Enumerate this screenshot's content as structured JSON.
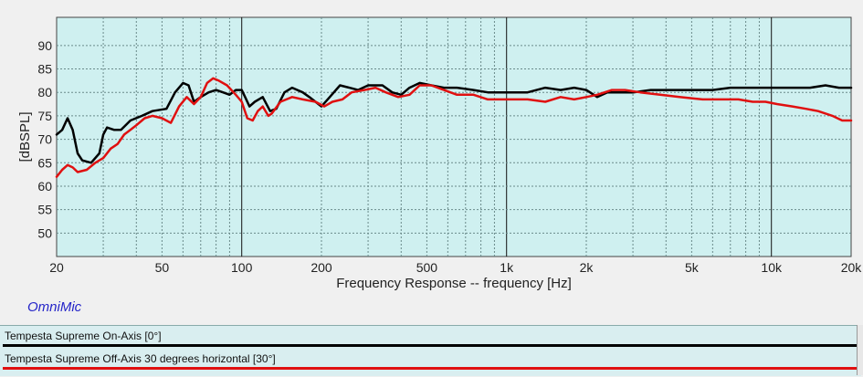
{
  "chart_data": {
    "type": "line",
    "xlabel": "Frequency Response -- frequency [Hz]",
    "ylabel": "[dBSPL]",
    "xscale": "log",
    "xlim": [
      20,
      20000
    ],
    "ylim": [
      45,
      96
    ],
    "grid": true,
    "background": "#cff0f0",
    "x_ticks": [
      20,
      50,
      100,
      200,
      500,
      1000,
      2000,
      5000,
      10000,
      20000
    ],
    "x_tick_labels": [
      "20",
      "50",
      "100",
      "200",
      "500",
      "1k",
      "2k",
      "5k",
      "10k",
      "20k"
    ],
    "y_ticks": [
      50,
      55,
      60,
      65,
      70,
      75,
      80,
      85,
      90
    ],
    "y_tick_labels": [
      "50",
      "55",
      "60",
      "65",
      "70",
      "75",
      "80",
      "85",
      "90"
    ],
    "series": [
      {
        "name": "Tempesta Supreme On-Axis [0°]",
        "color": "#000000",
        "points": [
          [
            20,
            71
          ],
          [
            21,
            72
          ],
          [
            22,
            74.5
          ],
          [
            23,
            72
          ],
          [
            24,
            67
          ],
          [
            25,
            65.5
          ],
          [
            27,
            65
          ],
          [
            29,
            67
          ],
          [
            30,
            71
          ],
          [
            31,
            72.5
          ],
          [
            33,
            72
          ],
          [
            35,
            72
          ],
          [
            38,
            74
          ],
          [
            42,
            75
          ],
          [
            46,
            76
          ],
          [
            52,
            76.5
          ],
          [
            56,
            80
          ],
          [
            60,
            82
          ],
          [
            63,
            81.5
          ],
          [
            66,
            78
          ],
          [
            70,
            79
          ],
          [
            75,
            80
          ],
          [
            80,
            80.5
          ],
          [
            85,
            80
          ],
          [
            90,
            79.5
          ],
          [
            95,
            80.5
          ],
          [
            100,
            80.5
          ],
          [
            103,
            79
          ],
          [
            107,
            77
          ],
          [
            112,
            78
          ],
          [
            120,
            79
          ],
          [
            128,
            76
          ],
          [
            135,
            76.5
          ],
          [
            145,
            80
          ],
          [
            155,
            81
          ],
          [
            170,
            80
          ],
          [
            180,
            79
          ],
          [
            200,
            77
          ],
          [
            215,
            79
          ],
          [
            235,
            81.5
          ],
          [
            255,
            81
          ],
          [
            275,
            80.5
          ],
          [
            300,
            81.5
          ],
          [
            340,
            81.5
          ],
          [
            370,
            80
          ],
          [
            400,
            79.5
          ],
          [
            430,
            81
          ],
          [
            470,
            82
          ],
          [
            520,
            81.5
          ],
          [
            580,
            81
          ],
          [
            650,
            81
          ],
          [
            750,
            80.5
          ],
          [
            850,
            80
          ],
          [
            950,
            80
          ],
          [
            1050,
            80
          ],
          [
            1200,
            80
          ],
          [
            1400,
            81
          ],
          [
            1600,
            80.5
          ],
          [
            1800,
            81
          ],
          [
            2000,
            80.5
          ],
          [
            2200,
            79
          ],
          [
            2400,
            80
          ],
          [
            2700,
            80
          ],
          [
            3000,
            80
          ],
          [
            3500,
            80.5
          ],
          [
            4000,
            80.5
          ],
          [
            5000,
            80.5
          ],
          [
            6000,
            80.5
          ],
          [
            7000,
            81
          ],
          [
            8000,
            81
          ],
          [
            9000,
            81
          ],
          [
            10000,
            81
          ],
          [
            12000,
            81
          ],
          [
            14000,
            81
          ],
          [
            16000,
            81.5
          ],
          [
            18000,
            81
          ],
          [
            20000,
            81
          ]
        ]
      },
      {
        "name": "Tempesta Supreme Off-Axis 30 degrees horizontal [30°]",
        "color": "#e01010",
        "points": [
          [
            20,
            62
          ],
          [
            21,
            63.5
          ],
          [
            22,
            64.5
          ],
          [
            23,
            64
          ],
          [
            24,
            63
          ],
          [
            26,
            63.5
          ],
          [
            28,
            65
          ],
          [
            30,
            66
          ],
          [
            32,
            68
          ],
          [
            34,
            69
          ],
          [
            36,
            71
          ],
          [
            38,
            72
          ],
          [
            40,
            73
          ],
          [
            43,
            74.5
          ],
          [
            46,
            75
          ],
          [
            50,
            74.5
          ],
          [
            54,
            73.5
          ],
          [
            58,
            77
          ],
          [
            62,
            79
          ],
          [
            66,
            77.5
          ],
          [
            70,
            79
          ],
          [
            74,
            82
          ],
          [
            78,
            83
          ],
          [
            82,
            82.5
          ],
          [
            88,
            81.5
          ],
          [
            95,
            79.5
          ],
          [
            100,
            78
          ],
          [
            105,
            74.5
          ],
          [
            110,
            74
          ],
          [
            115,
            76
          ],
          [
            120,
            77
          ],
          [
            126,
            75
          ],
          [
            130,
            75.5
          ],
          [
            140,
            78
          ],
          [
            155,
            79
          ],
          [
            170,
            78.5
          ],
          [
            190,
            78
          ],
          [
            205,
            77
          ],
          [
            220,
            78
          ],
          [
            240,
            78.5
          ],
          [
            260,
            80
          ],
          [
            290,
            80.5
          ],
          [
            320,
            81
          ],
          [
            350,
            80
          ],
          [
            390,
            79
          ],
          [
            430,
            79.5
          ],
          [
            470,
            81.5
          ],
          [
            520,
            81.5
          ],
          [
            580,
            80.5
          ],
          [
            650,
            79.5
          ],
          [
            750,
            79.5
          ],
          [
            850,
            78.5
          ],
          [
            1000,
            78.5
          ],
          [
            1200,
            78.5
          ],
          [
            1400,
            78
          ],
          [
            1600,
            79
          ],
          [
            1800,
            78.5
          ],
          [
            2000,
            79
          ],
          [
            2200,
            79.5
          ],
          [
            2500,
            80.5
          ],
          [
            2800,
            80.5
          ],
          [
            3200,
            80
          ],
          [
            3800,
            79.5
          ],
          [
            4500,
            79
          ],
          [
            5500,
            78.5
          ],
          [
            6500,
            78.5
          ],
          [
            7500,
            78.5
          ],
          [
            8500,
            78
          ],
          [
            9500,
            78
          ],
          [
            10500,
            77.5
          ],
          [
            12000,
            77
          ],
          [
            13500,
            76.5
          ],
          [
            15000,
            76
          ],
          [
            17000,
            75
          ],
          [
            18500,
            74
          ],
          [
            20000,
            74
          ]
        ]
      }
    ]
  },
  "brand": "OmniMic",
  "legend": [
    {
      "label": "Tempesta Supreme On-Axis [0°]",
      "color": "#000000"
    },
    {
      "label": "Tempesta Supreme Off-Axis 30 degrees horizontal [30°]",
      "color": "#e01010"
    }
  ]
}
